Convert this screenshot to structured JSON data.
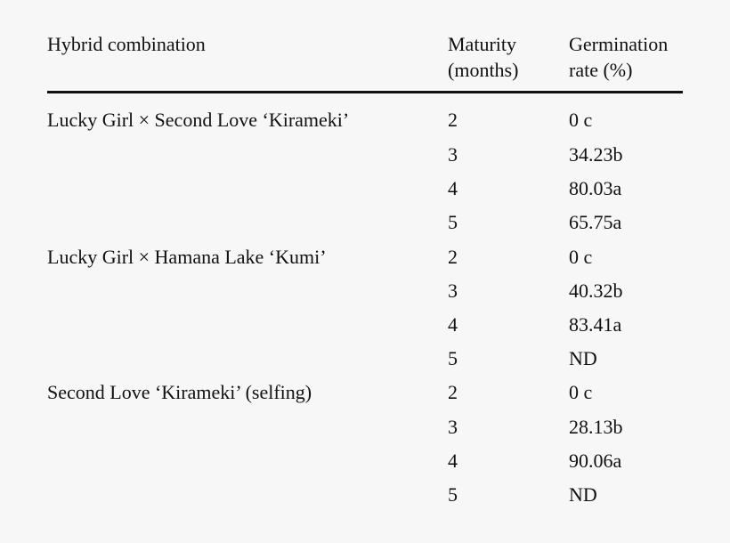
{
  "table": {
    "headers": {
      "hybrid": "Hybrid combination",
      "maturity_line1": "Maturity",
      "maturity_line2": "(months)",
      "germination_line1": "Germination",
      "germination_line2": "rate (%)"
    },
    "rows": [
      {
        "hybrid": "Lucky Girl × Second Love ‘Kirameki’",
        "maturity": "2",
        "rate": "0 c"
      },
      {
        "hybrid": "",
        "maturity": "3",
        "rate": "34.23b"
      },
      {
        "hybrid": "",
        "maturity": "4",
        "rate": "80.03a"
      },
      {
        "hybrid": "",
        "maturity": "5",
        "rate": "65.75a"
      },
      {
        "hybrid": "Lucky Girl × Hamana Lake ‘Kumi’",
        "maturity": "2",
        "rate": "0 c"
      },
      {
        "hybrid": "",
        "maturity": "3",
        "rate": "40.32b"
      },
      {
        "hybrid": "",
        "maturity": "4",
        "rate": "83.41a"
      },
      {
        "hybrid": "",
        "maturity": "5",
        "rate": "ND"
      },
      {
        "hybrid": "Second Love ‘Kirameki’ (selfing)",
        "maturity": "2",
        "rate": "0 c"
      },
      {
        "hybrid": "",
        "maturity": "3",
        "rate": "28.13b"
      },
      {
        "hybrid": "",
        "maturity": "4",
        "rate": "90.06a"
      },
      {
        "hybrid": "",
        "maturity": "5",
        "rate": "ND"
      }
    ]
  }
}
